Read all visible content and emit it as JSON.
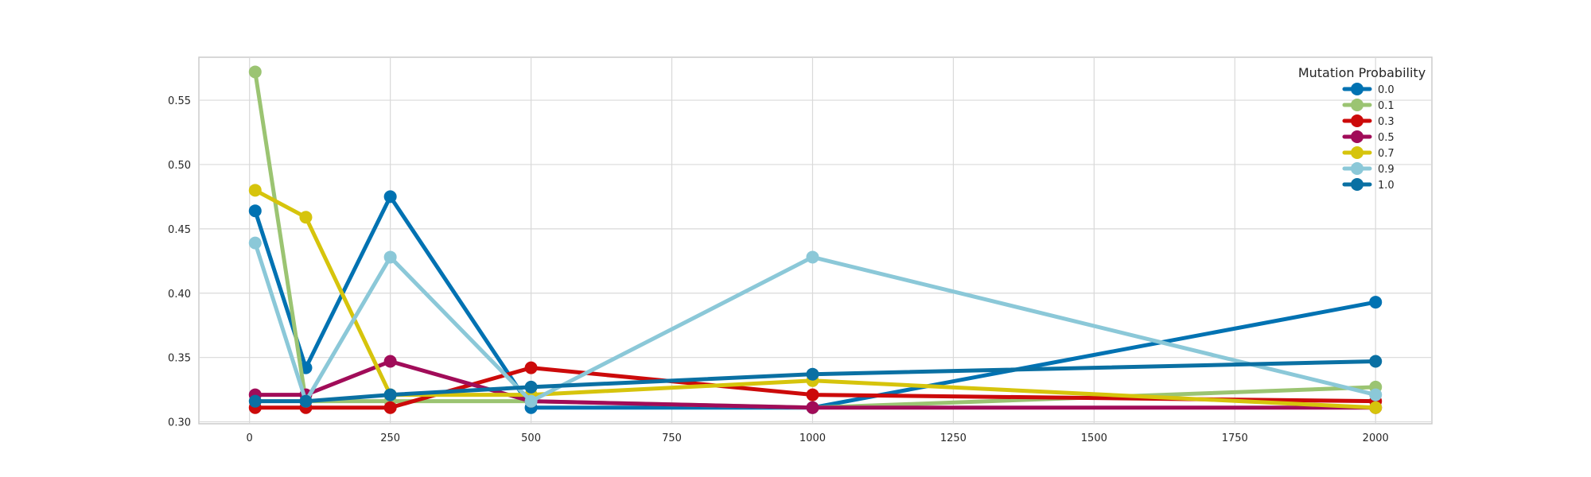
{
  "chart_data": {
    "type": "line",
    "title": "",
    "xlabel": "",
    "ylabel": "",
    "x": [
      10,
      100,
      250,
      500,
      1000,
      2000
    ],
    "xlim": [
      -90,
      2100
    ],
    "ylim": [
      0.2985,
      0.5834
    ],
    "x_ticks": [
      0,
      250,
      500,
      750,
      1000,
      1250,
      1500,
      1750,
      2000
    ],
    "x_tick_labels": [
      "0",
      "250",
      "500",
      "750",
      "1000",
      "1250",
      "1500",
      "1750",
      "2000"
    ],
    "y_ticks": [
      0.3,
      0.35,
      0.4,
      0.45,
      0.5,
      0.55
    ],
    "y_tick_labels": [
      "0.30",
      "0.35",
      "0.40",
      "0.45",
      "0.50",
      "0.55"
    ],
    "grid": true,
    "legend": {
      "title": "Mutation Probability",
      "placement": "top-right"
    },
    "series": [
      {
        "name": "0.0",
        "color": "#0072b2",
        "values": [
          0.464,
          0.342,
          0.475,
          0.311,
          0.311,
          0.393
        ]
      },
      {
        "name": "0.1",
        "color": "#9bc472",
        "values": [
          0.572,
          0.316,
          0.316,
          0.316,
          0.311,
          0.327
        ]
      },
      {
        "name": "0.3",
        "color": "#cc0a0a",
        "values": [
          0.311,
          0.311,
          0.311,
          0.342,
          0.321,
          0.316
        ]
      },
      {
        "name": "0.5",
        "color": "#a10c59",
        "values": [
          0.321,
          0.321,
          0.347,
          0.316,
          0.311,
          0.311
        ]
      },
      {
        "name": "0.7",
        "color": "#d6c40c",
        "values": [
          0.48,
          0.459,
          0.321,
          0.321,
          0.332,
          0.311
        ]
      },
      {
        "name": "0.9",
        "color": "#8bc8d8",
        "values": [
          0.439,
          0.316,
          0.428,
          0.316,
          0.428,
          0.321
        ]
      },
      {
        "name": "1.0",
        "color": "#0a70a3",
        "values": [
          0.316,
          0.316,
          0.321,
          0.327,
          0.337,
          0.347
        ]
      }
    ]
  }
}
